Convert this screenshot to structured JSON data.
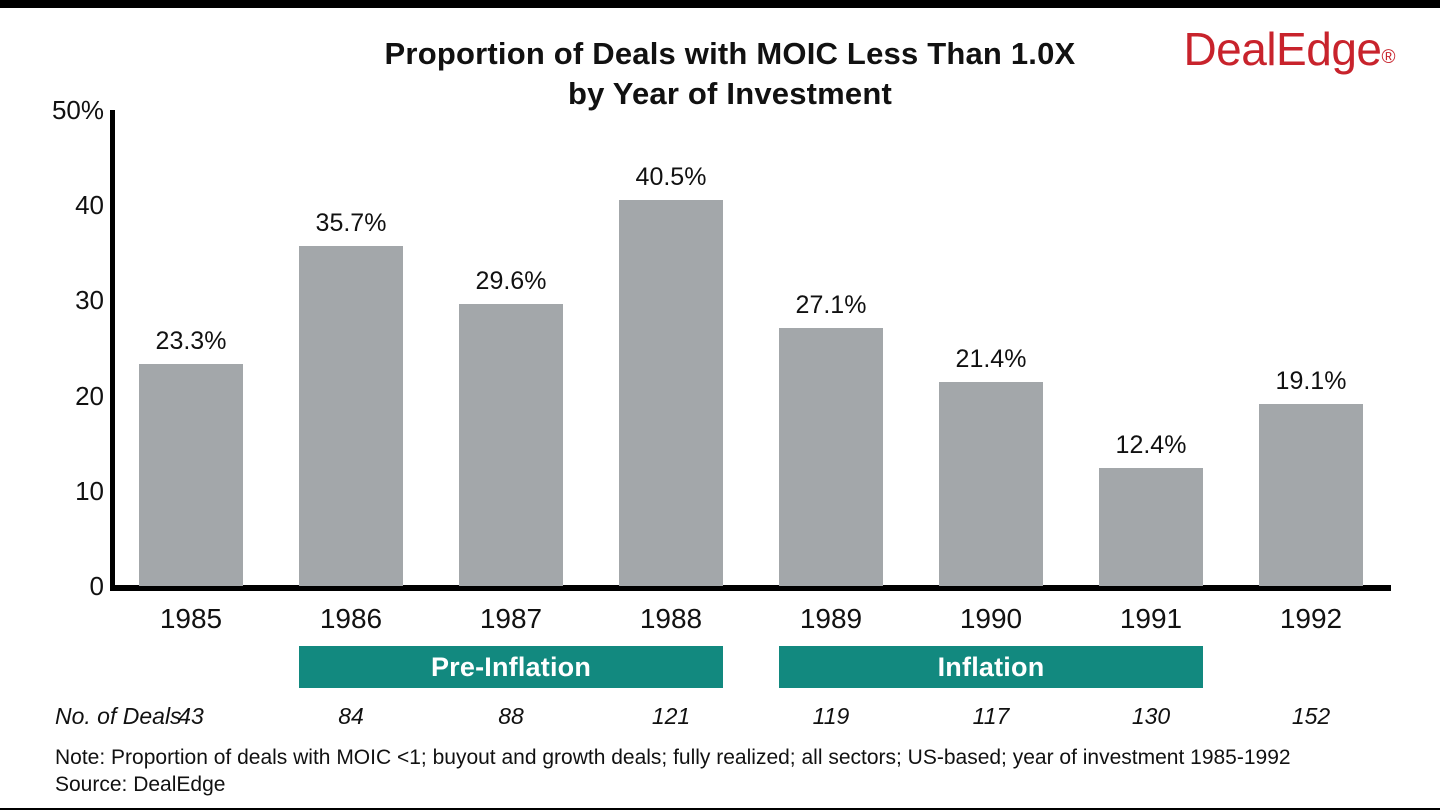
{
  "header": {
    "title_line1": "Proportion of Deals with MOIC Less Than 1.0X",
    "title_line2": "by Year of Investment",
    "logo_text": "DealEdge",
    "logo_registered": "®",
    "logo_color": "#C8232C"
  },
  "chart_data": {
    "type": "bar",
    "title": "Proportion of Deals with MOIC Less Than 1.0X by Year of Investment",
    "categories": [
      "1985",
      "1986",
      "1987",
      "1988",
      "1989",
      "1990",
      "1991",
      "1992"
    ],
    "values": [
      23.3,
      35.7,
      29.6,
      40.5,
      27.1,
      21.4,
      12.4,
      19.1
    ],
    "value_labels": [
      "23.3%",
      "35.7%",
      "29.6%",
      "40.5%",
      "27.1%",
      "21.4%",
      "12.4%",
      "19.1%"
    ],
    "xlabel": "",
    "ylabel": "",
    "ylim": [
      0,
      50
    ],
    "y_ticks": [
      {
        "value": 50,
        "label": "50%"
      },
      {
        "value": 40,
        "label": "40"
      },
      {
        "value": 30,
        "label": "30"
      },
      {
        "value": 20,
        "label": "20"
      },
      {
        "value": 10,
        "label": "10"
      },
      {
        "value": 0,
        "label": "0"
      }
    ],
    "grid": false,
    "legend": false,
    "bar_color": "#A3A7AA",
    "axis_color": "#000000",
    "period_bands": [
      {
        "label": "Pre-Inflation",
        "start_category": "1986",
        "end_category": "1988",
        "color": "#12897F",
        "text_color": "#FFFFFF"
      },
      {
        "label": "Inflation",
        "start_category": "1989",
        "end_category": "1991",
        "color": "#12897F",
        "text_color": "#FFFFFF"
      }
    ],
    "deals_row": {
      "label": "No. of Deals",
      "values": [
        "43",
        "84",
        "88",
        "121",
        "119",
        "117",
        "130",
        "152"
      ]
    }
  },
  "footer": {
    "note": "Note: Proportion of deals with MOIC <1; buyout and growth deals; fully realized; all sectors; US-based; year of investment 1985-1992",
    "source": "Source: DealEdge"
  }
}
